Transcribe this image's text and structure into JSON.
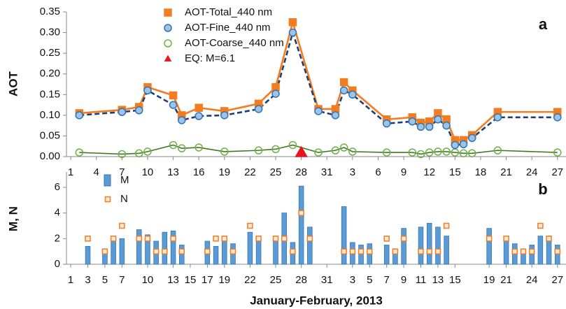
{
  "chart_data": [
    {
      "type": "line",
      "panel_label": "a",
      "ylabel": "AOT",
      "x": [
        2,
        7,
        9,
        10,
        13,
        14,
        16,
        19,
        23,
        25,
        27,
        30,
        32,
        33,
        34,
        38,
        41,
        42,
        43,
        44,
        45,
        46,
        47,
        48,
        51,
        58
      ],
      "xlim": [
        0.5,
        59
      ],
      "xticks": [
        1,
        4,
        7,
        10,
        13,
        16,
        19,
        22,
        25,
        28,
        31,
        {
          "value": 34,
          "label": "3"
        },
        {
          "value": 37,
          "label": "6"
        },
        {
          "value": 40,
          "label": "9"
        },
        {
          "value": 43,
          "label": "12"
        },
        {
          "value": 46,
          "label": "15"
        },
        {
          "value": 49,
          "label": "18"
        },
        {
          "value": 52,
          "label": "21"
        },
        {
          "value": 55,
          "label": "24"
        },
        {
          "value": 58,
          "label": "27"
        }
      ],
      "ylim": [
        0,
        0.35
      ],
      "yticks": [
        {
          "value": 0,
          "label": "0.00"
        },
        {
          "value": 0.05,
          "label": "0.05"
        },
        {
          "value": 0.1,
          "label": "0.10"
        },
        {
          "value": 0.15,
          "label": "0.15"
        },
        {
          "value": 0.2,
          "label": "0.20"
        },
        {
          "value": 0.25,
          "label": "0.25"
        },
        {
          "value": 0.3,
          "label": "0.30"
        },
        {
          "value": 0.35,
          "label": "0.35"
        }
      ],
      "legend": "upper left",
      "series": [
        {
          "name": "AOT-Total_440 nm",
          "color": "#f47c20",
          "fill": "#f47c20",
          "marker": "square",
          "line": "solid",
          "values": [
            0.105,
            0.113,
            0.12,
            0.168,
            0.148,
            0.1,
            0.118,
            0.11,
            0.128,
            0.168,
            0.325,
            0.115,
            0.115,
            0.18,
            0.16,
            0.09,
            0.095,
            0.082,
            0.085,
            0.105,
            0.09,
            0.04,
            0.04,
            0.052,
            0.108,
            0.108
          ]
        },
        {
          "name": "AOT-Fine_440 nm",
          "color": "#2e75b6",
          "line_color": "#1f3f73",
          "fill": "#9dc3e6",
          "marker": "circle",
          "line": "dashed",
          "values": [
            0.1,
            0.108,
            0.112,
            0.16,
            0.125,
            0.088,
            0.098,
            0.1,
            0.115,
            0.152,
            0.3,
            0.11,
            0.1,
            0.16,
            0.15,
            0.08,
            0.085,
            0.072,
            0.072,
            0.09,
            0.075,
            0.028,
            0.03,
            0.045,
            0.095,
            0.095
          ]
        },
        {
          "name": "AOT-Coarse_440 nm",
          "color": "#70ad47",
          "line_color": "#3d7a1e",
          "fill": "none",
          "marker": "circle",
          "line": "solid",
          "values": [
            0.01,
            0.006,
            0.008,
            0.012,
            0.028,
            0.02,
            0.022,
            0.012,
            0.015,
            0.018,
            0.028,
            0.01,
            0.015,
            0.022,
            0.012,
            0.01,
            0.01,
            0.006,
            0.01,
            0.012,
            0.012,
            0.01,
            0.008,
            0.008,
            0.015,
            0.01
          ]
        },
        {
          "name": "EQ: M=6.1",
          "color": "#e8141c",
          "fill": "#e8141c",
          "marker": "triangle",
          "x": [
            28
          ],
          "values": [
            0
          ]
        }
      ]
    },
    {
      "type": "bar",
      "panel_label": "b",
      "ylabel": "M, N",
      "xlabel": "January-February, 2013",
      "x": [
        3,
        5,
        6,
        7,
        9,
        10,
        11,
        12,
        13,
        14,
        17,
        18,
        19,
        20,
        22,
        23,
        25,
        26,
        27,
        28,
        29,
        33,
        34,
        35,
        36,
        38,
        39,
        40,
        42,
        43,
        44,
        45,
        50,
        52,
        53,
        54,
        55,
        56,
        57,
        58
      ],
      "xlim": [
        0.5,
        59
      ],
      "xticks": [
        1,
        3,
        5,
        7,
        10,
        13,
        15,
        17,
        19,
        22,
        25,
        28,
        31,
        {
          "value": 34,
          "label": "3"
        },
        {
          "value": 36,
          "label": "5"
        },
        {
          "value": 38,
          "label": "7"
        },
        {
          "value": 40,
          "label": "9"
        },
        {
          "value": 42,
          "label": "11"
        },
        {
          "value": 44,
          "label": "13"
        },
        {
          "value": 46,
          "label": "15"
        },
        {
          "value": 50,
          "label": "19"
        },
        {
          "value": 52,
          "label": "21"
        },
        {
          "value": 55,
          "label": "24"
        },
        {
          "value": 58,
          "label": "27"
        }
      ],
      "ylim": [
        0,
        7.2
      ],
      "yticks": [
        0,
        2,
        4,
        6
      ],
      "legend": "upper left",
      "series": [
        {
          "name": "M",
          "type": "bar",
          "color": "#2e75b6",
          "fill": "#5b9bd5",
          "values": [
            1.4,
            1,
            1.8,
            2,
            2.7,
            2.3,
            1.8,
            2.5,
            2.6,
            1.5,
            1.8,
            1.4,
            1.9,
            1.6,
            2.5,
            2,
            2,
            4,
            1.7,
            6.1,
            2.9,
            4.5,
            1.7,
            1.5,
            1.6,
            1.5,
            1.2,
            2.8,
            2.9,
            3.2,
            2.9,
            2.2,
            2.8,
            2.1,
            1.6,
            1.1,
            1.5,
            2.2,
            2.2,
            1.5
          ]
        },
        {
          "name": "N",
          "type": "scatter",
          "color": "#f47c20",
          "fill": "#fde9d9",
          "marker": "square",
          "values": [
            2,
            1,
            2,
            3,
            2,
            2,
            1,
            1,
            2,
            1,
            1,
            2,
            2,
            1,
            3,
            2,
            2,
            2,
            1,
            4,
            2,
            1,
            1,
            1,
            1,
            2,
            1,
            2,
            1,
            1,
            1,
            3,
            2,
            2,
            1,
            1,
            1,
            3,
            2,
            1
          ]
        }
      ]
    }
  ]
}
